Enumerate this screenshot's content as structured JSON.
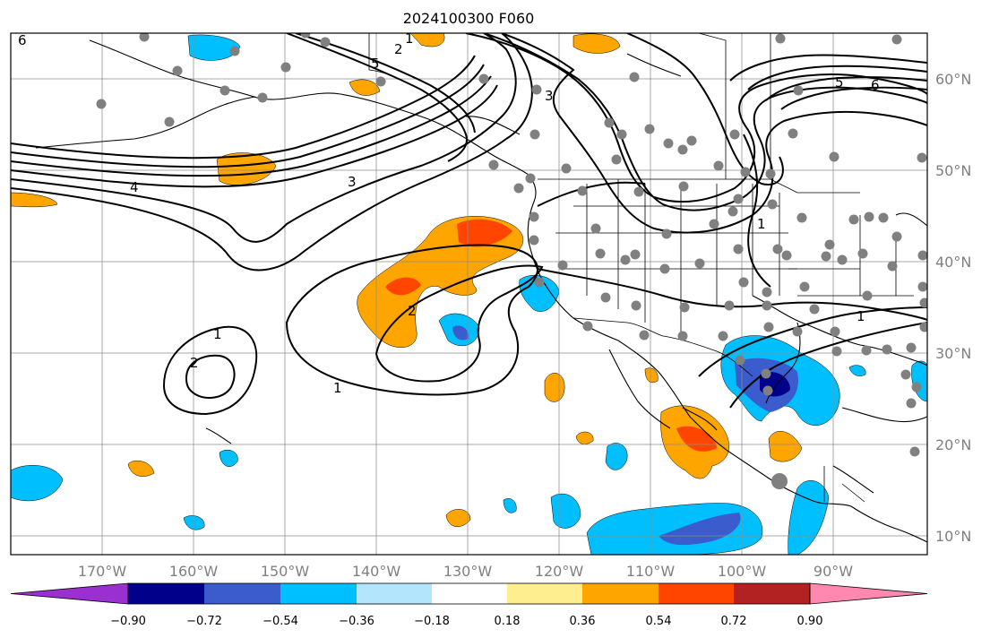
{
  "title": "2024100300 F060",
  "map": {
    "lon_range": [
      -180,
      -79
    ],
    "lat_range": [
      8,
      65
    ],
    "lat_labels": [
      "10°N",
      "20°N",
      "30°N",
      "40°N",
      "50°N",
      "60°N"
    ],
    "lon_labels": [
      "170°W",
      "160°W",
      "150°W",
      "140°W",
      "130°W",
      "120°W",
      "110°W",
      "100°W",
      "90°W"
    ],
    "contour_labels": [
      "6",
      "4",
      "3",
      "2",
      "1",
      "5",
      "2",
      "3",
      "4",
      "5",
      "6",
      "1",
      "1",
      "2",
      "1",
      "2",
      "1",
      "1",
      "2"
    ],
    "colors": {
      "grid": "#8c8c8c",
      "coast": "#000000",
      "station": "#808080",
      "tick_label": "#808080"
    }
  },
  "colorbar": {
    "colors": [
      "#9b30d0",
      "#00008b",
      "#3a5ccc",
      "#00bfff",
      "#b3e5fc",
      "#ffffff",
      "#ffee90",
      "#ffa500",
      "#ff4500",
      "#b22222",
      "#ff88b0"
    ],
    "tick_labels": [
      "−0.90",
      "−0.72",
      "−0.54",
      "−0.36",
      "−0.18",
      "0.18",
      "0.36",
      "0.54",
      "0.72",
      "0.90"
    ]
  }
}
